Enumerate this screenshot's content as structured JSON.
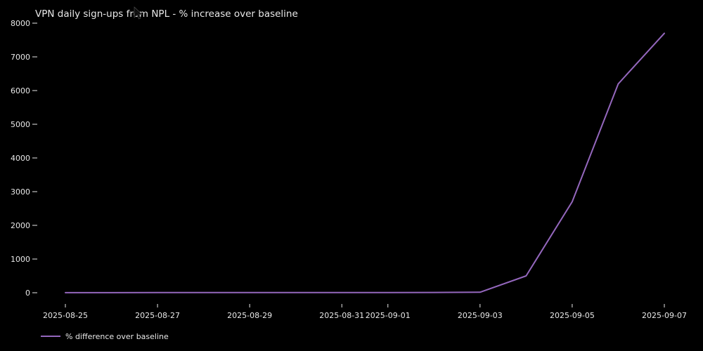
{
  "colors": {
    "background": "#000000",
    "text": "#e8e8e8",
    "line": "#9467bd"
  },
  "chart_data": {
    "type": "line",
    "title": "VPN daily sign-ups from NPL - % increase over baseline",
    "xlabel": "",
    "ylabel": "",
    "x": [
      "2025-08-25",
      "2025-08-26",
      "2025-08-27",
      "2025-08-28",
      "2025-08-29",
      "2025-08-30",
      "2025-08-31",
      "2025-09-01",
      "2025-09-02",
      "2025-09-03",
      "2025-09-04",
      "2025-09-05",
      "2025-09-06",
      "2025-09-07"
    ],
    "series": [
      {
        "name": "% difference over baseline",
        "color": "#9467bd",
        "values": [
          2,
          3,
          5,
          4,
          6,
          5,
          4,
          6,
          8,
          15,
          500,
          2700,
          6200,
          7700
        ]
      }
    ],
    "yticks": [
      0,
      1000,
      2000,
      3000,
      4000,
      5000,
      6000,
      7000,
      8000
    ],
    "xtick_labels": [
      "2025-08-25",
      "2025-08-27",
      "2025-08-29",
      "2025-08-31",
      "2025-09-01",
      "2025-09-03",
      "2025-09-05",
      "2025-09-07"
    ],
    "ylim": [
      -380,
      8040
    ],
    "xrange_days": 13,
    "grid": false,
    "legend_position": "lower-left-below-plot"
  }
}
